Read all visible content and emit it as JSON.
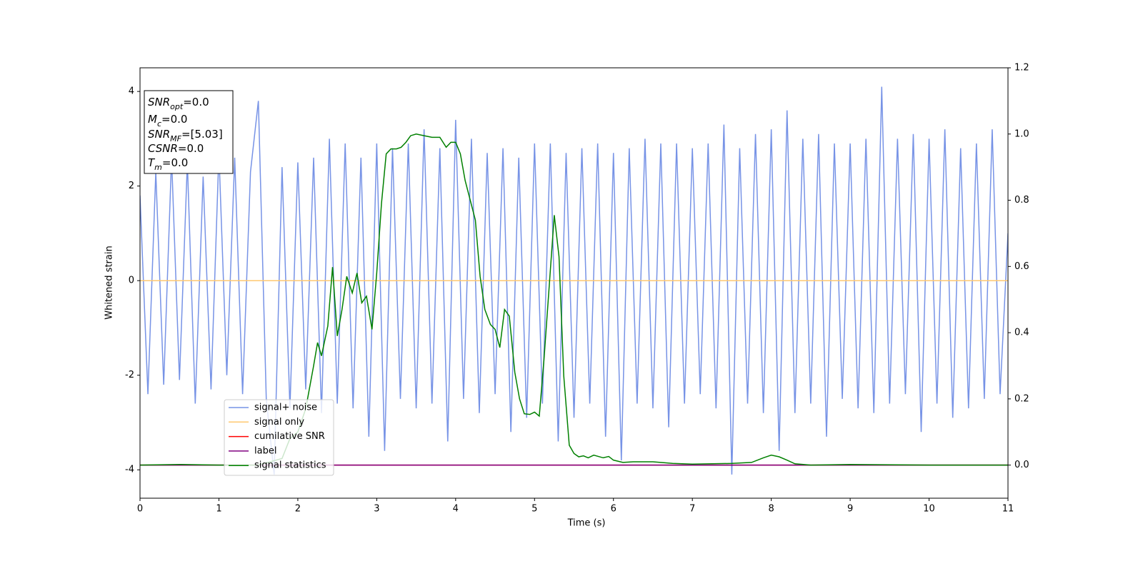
{
  "chart_data": {
    "type": "line",
    "xlabel": "Time (s)",
    "ylabel": "Whitened strain",
    "xlim": [
      0,
      11
    ],
    "xticks": [
      0,
      1,
      2,
      3,
      4,
      5,
      6,
      7,
      8,
      9,
      10,
      11
    ],
    "ylim": [
      -4.6,
      4.5
    ],
    "yticks": [
      -4,
      -2,
      0,
      2,
      4
    ],
    "y2lim": [
      -0.1,
      1.2
    ],
    "y2ticks": [
      {
        "value": 0,
        "label": "0.0"
      },
      {
        "value": 0.2,
        "label": "0.2"
      },
      {
        "value": 0.4,
        "label": "0.4"
      },
      {
        "value": 0.6,
        "label": "0.6"
      },
      {
        "value": 0.8,
        "label": "0.8"
      },
      {
        "value": 1.0,
        "label": "1.0"
      },
      {
        "value": 1.2,
        "label": "1.2"
      }
    ],
    "annotation": [
      {
        "symbol": "SNR",
        "subscript": "opt",
        "value": "=0.0"
      },
      {
        "symbol": "M",
        "subscript": "c",
        "value": "=0.0"
      },
      {
        "symbol": "SNR",
        "subscript": "MF",
        "value": "=[5.03]"
      },
      {
        "symbol": "CSNR",
        "subscript": "",
        "value": "=0.0"
      },
      {
        "symbol": "T",
        "subscript": "m",
        "value": "=0.0"
      }
    ],
    "series": [
      {
        "name": "signal+ noise",
        "color": "#7793e6",
        "x": [
          0,
          0.1,
          0.2,
          0.3,
          0.4,
          0.5,
          0.6,
          0.7,
          0.8,
          0.9,
          1,
          1.1,
          1.2,
          1.3,
          1.4,
          1.5,
          1.6,
          1.7,
          1.8,
          1.9,
          2,
          2.1,
          2.2,
          2.3,
          2.4,
          2.5,
          2.6,
          2.7,
          2.8,
          2.9,
          3,
          3.1,
          3.2,
          3.3,
          3.4,
          3.5,
          3.6,
          3.7,
          3.8,
          3.9,
          4,
          4.1,
          4.2,
          4.3,
          4.4,
          4.5,
          4.6,
          4.7,
          4.8,
          4.9,
          5,
          5.1,
          5.2,
          5.3,
          5.4,
          5.5,
          5.6,
          5.7,
          5.8,
          5.9,
          6,
          6.1,
          6.2,
          6.3,
          6.4,
          6.5,
          6.6,
          6.7,
          6.8,
          6.9,
          7,
          7.1,
          7.2,
          7.3,
          7.4,
          7.5,
          7.6,
          7.7,
          7.8,
          7.9,
          8,
          8.1,
          8.2,
          8.3,
          8.4,
          8.5,
          8.6,
          8.7,
          8.8,
          8.9,
          9,
          9.1,
          9.2,
          9.3,
          9.4,
          9.5,
          9.6,
          9.7,
          9.8,
          9.9,
          10,
          10.1,
          10.2,
          10.3,
          10.4,
          10.5,
          10.6,
          10.7,
          10.8,
          10.9,
          11
        ],
        "values": [
          1.8,
          -2.4,
          2.3,
          -2.2,
          2.6,
          -2.1,
          2.5,
          -2.6,
          2.2,
          -2.3,
          2.7,
          -2.0,
          2.6,
          -2.4,
          2.3,
          3.8,
          -2.5,
          -4.1,
          2.4,
          -2.7,
          2.5,
          -2.3,
          2.6,
          -2.8,
          3.0,
          -2.6,
          2.9,
          -2.7,
          2.6,
          -3.3,
          2.9,
          -3.6,
          2.8,
          -2.5,
          2.9,
          -2.7,
          3.2,
          -2.6,
          2.8,
          -3.4,
          3.4,
          -2.5,
          3.0,
          -2.8,
          2.7,
          -2.4,
          2.8,
          -3.2,
          2.6,
          -2.9,
          2.9,
          -2.6,
          2.9,
          -3.4,
          2.7,
          -2.9,
          2.8,
          -2.6,
          2.9,
          -3.3,
          2.7,
          -3.8,
          2.8,
          -2.6,
          3.0,
          -2.7,
          2.9,
          -3.1,
          2.9,
          -2.6,
          2.8,
          -2.4,
          2.9,
          -2.7,
          3.3,
          -4.1,
          2.8,
          -2.6,
          3.1,
          -2.8,
          3.2,
          -3.6,
          3.6,
          -2.8,
          3.0,
          -2.6,
          3.1,
          -3.3,
          2.9,
          -2.5,
          2.9,
          -2.7,
          3.0,
          -2.8,
          4.1,
          -2.6,
          3.0,
          -2.4,
          3.1,
          -3.2,
          3.0,
          -2.6,
          3.2,
          -2.9,
          2.8,
          -2.7,
          2.9,
          -2.5,
          3.2,
          -2.4,
          1.0
        ]
      },
      {
        "name": "signal only",
        "color": "#ffc870",
        "x": [
          0,
          11
        ],
        "values": [
          0,
          0
        ]
      },
      {
        "name": "cumilative SNR",
        "color": "#ff0000",
        "axis": "y2",
        "x": [
          0,
          11
        ],
        "values": [
          0,
          0
        ]
      },
      {
        "name": "label",
        "color": "#800080",
        "axis": "y2",
        "x": [
          0,
          11
        ],
        "values": [
          0,
          0
        ]
      },
      {
        "name": "signal statistics",
        "color": "#008000",
        "axis": "y2",
        "x": [
          0,
          0.5,
          1,
          1.5,
          1.8,
          1.9,
          2,
          2.1,
          2.2,
          2.25,
          2.3,
          2.38,
          2.44,
          2.5,
          2.56,
          2.62,
          2.69,
          2.75,
          2.81,
          2.87,
          2.94,
          3,
          3.06,
          3.12,
          3.18,
          3.25,
          3.31,
          3.37,
          3.43,
          3.5,
          3.6,
          3.7,
          3.8,
          3.88,
          3.94,
          4,
          4.06,
          4.12,
          4.25,
          4.31,
          4.37,
          4.44,
          4.5,
          4.56,
          4.62,
          4.68,
          4.75,
          4.81,
          4.87,
          4.94,
          5,
          5.06,
          5.12,
          5.25,
          5.31,
          5.37,
          5.44,
          5.5,
          5.56,
          5.62,
          5.68,
          5.75,
          5.87,
          5.94,
          6,
          6.12,
          6.25,
          6.5,
          6.75,
          7,
          7.5,
          7.75,
          7.9,
          8,
          8.1,
          8.2,
          8.3,
          8.5,
          9,
          10,
          11
        ],
        "values": [
          0,
          0.002,
          0,
          0,
          0.02,
          0.08,
          0.1,
          0.17,
          0.3,
          0.37,
          0.33,
          0.42,
          0.598,
          0.39,
          0.47,
          0.57,
          0.52,
          0.58,
          0.49,
          0.51,
          0.41,
          0.58,
          0.79,
          0.94,
          0.955,
          0.955,
          0.96,
          0.975,
          0.995,
          1.0,
          0.995,
          0.99,
          0.99,
          0.96,
          0.975,
          0.975,
          0.94,
          0.86,
          0.74,
          0.57,
          0.47,
          0.425,
          0.41,
          0.355,
          0.47,
          0.45,
          0.28,
          0.2,
          0.155,
          0.153,
          0.16,
          0.148,
          0.32,
          0.755,
          0.63,
          0.27,
          0.06,
          0.035,
          0.025,
          0.028,
          0.022,
          0.03,
          0.022,
          0.026,
          0.015,
          0.008,
          0.01,
          0.01,
          0.005,
          0.003,
          0.005,
          0.008,
          0.022,
          0.03,
          0.025,
          0.015,
          0.004,
          0,
          0.002,
          0,
          0
        ]
      }
    ]
  }
}
